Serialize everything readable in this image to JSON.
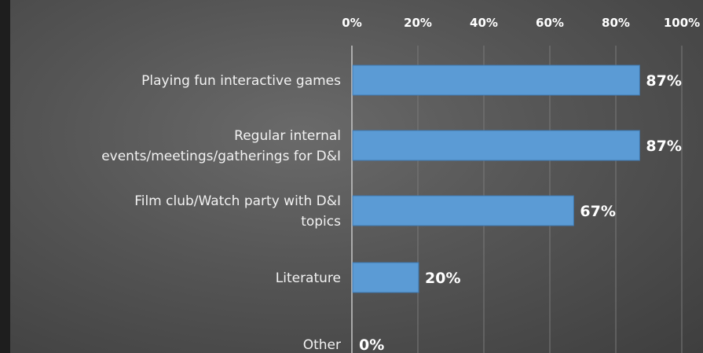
{
  "chart_data": {
    "type": "bar",
    "orientation": "horizontal",
    "categories": [
      [
        "Playing fun interactive games"
      ],
      [
        "Regular internal",
        "events/meetings/gatherings for D&I"
      ],
      [
        "Film club/Watch party with D&I",
        "topics"
      ],
      [
        "Literature"
      ],
      [
        "Other"
      ]
    ],
    "values": [
      87,
      87,
      67,
      20,
      0
    ],
    "value_labels": [
      "87%",
      "87%",
      "67%",
      "20%",
      "0%"
    ],
    "x_ticks": [
      "0%",
      "20%",
      "40%",
      "60%",
      "80%",
      "100%"
    ],
    "xlim": [
      0,
      100
    ],
    "x_axis_position": "top",
    "grid": true,
    "bar_color": "#5b9bd5",
    "title": "",
    "xlabel": "",
    "ylabel": ""
  }
}
